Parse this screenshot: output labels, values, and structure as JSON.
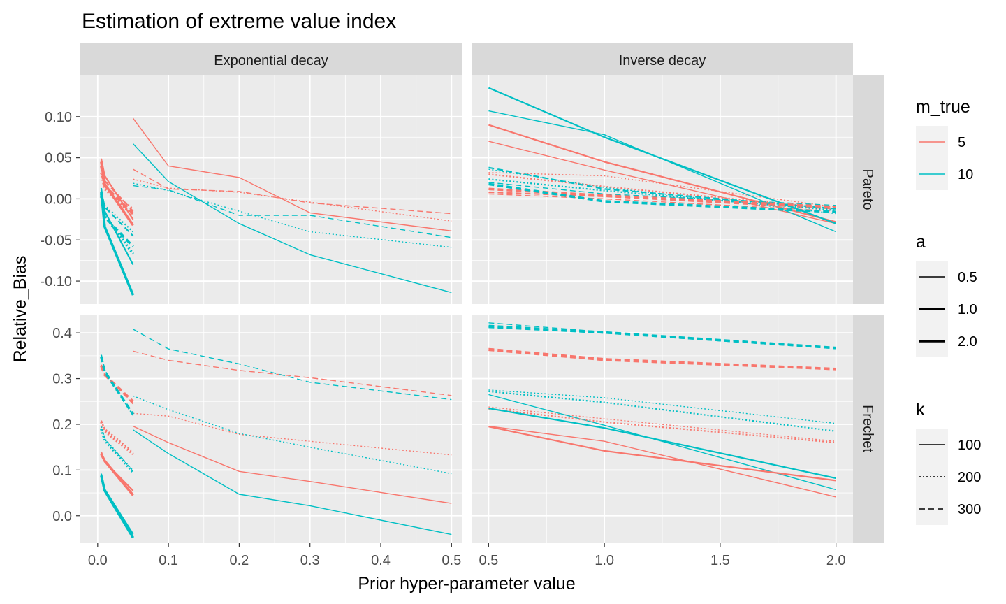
{
  "chart_data": {
    "type": "line",
    "title": "Estimation of extreme value index",
    "xlabel": "Prior hyper-parameter value",
    "ylabel": "Relative_Bias",
    "facet_cols": [
      "Exponential decay",
      "Inverse decay"
    ],
    "facet_rows": [
      "Pareto",
      "Frechet"
    ],
    "x_ticks": {
      "Exponential decay": [
        "0.0",
        "0.1",
        "0.2",
        "0.3",
        "0.4",
        "0.5"
      ],
      "Inverse decay": [
        "0.5",
        "1.0",
        "1.5",
        "2.0"
      ]
    },
    "y_ticks": {
      "Pareto": [
        "0.10",
        "0.05",
        "0.00",
        "-0.05",
        "-0.10"
      ],
      "Frechet": [
        "0.4",
        "0.3",
        "0.2",
        "0.1",
        "0.0"
      ]
    },
    "xlim": {
      "Exponential decay": [
        -0.0245,
        0.5145
      ],
      "Inverse decay": [
        0.4265,
        2.0735
      ]
    },
    "ylim": {
      "Pareto": [
        -0.128,
        0.15
      ],
      "Frechet": [
        -0.06,
        0.44
      ]
    },
    "grid": true,
    "legend_position": "right",
    "legend": {
      "m_true": {
        "title": "m_true",
        "entries": [
          "5",
          "10"
        ],
        "colors": [
          "#F8766D",
          "#00BFC4"
        ]
      },
      "a": {
        "title": "a",
        "entries": [
          "0.5",
          "1.0",
          "2.0"
        ]
      },
      "k": {
        "title": "k",
        "entries": [
          "100",
          "200",
          "300"
        ]
      }
    },
    "line_styles": {
      "100": "solid",
      "200": "dotted",
      "300": "dashed"
    },
    "series": [
      {
        "panel": "Exponential decay|Pareto",
        "m_true": "5",
        "a": "0.5",
        "k": "100",
        "x": [
          0.05,
          0.1,
          0.2,
          0.3,
          0.5
        ],
        "y": [
          0.098,
          0.04,
          0.026,
          -0.017,
          -0.039
        ]
      },
      {
        "panel": "Exponential decay|Pareto",
        "m_true": "5",
        "a": "0.5",
        "k": "200",
        "x": [
          0.05,
          0.1,
          0.2,
          0.3,
          0.5
        ],
        "y": [
          0.024,
          0.013,
          0.008,
          -0.004,
          -0.027
        ]
      },
      {
        "panel": "Exponential decay|Pareto",
        "m_true": "5",
        "a": "0.5",
        "k": "300",
        "x": [
          0.05,
          0.1,
          0.2,
          0.3,
          0.5
        ],
        "y": [
          0.036,
          0.012,
          0.009,
          -0.005,
          -0.018
        ]
      },
      {
        "panel": "Exponential decay|Pareto",
        "m_true": "10",
        "a": "0.5",
        "k": "100",
        "x": [
          0.05,
          0.1,
          0.2,
          0.3,
          0.5
        ],
        "y": [
          0.067,
          0.021,
          -0.03,
          -0.068,
          -0.114
        ]
      },
      {
        "panel": "Exponential decay|Pareto",
        "m_true": "10",
        "a": "0.5",
        "k": "200",
        "x": [
          0.05,
          0.1,
          0.2,
          0.3,
          0.5
        ],
        "y": [
          0.019,
          0.01,
          -0.015,
          -0.04,
          -0.059
        ]
      },
      {
        "panel": "Exponential decay|Pareto",
        "m_true": "10",
        "a": "0.5",
        "k": "300",
        "x": [
          0.05,
          0.1,
          0.2,
          0.3,
          0.5
        ],
        "y": [
          0.016,
          0.011,
          -0.02,
          -0.02,
          -0.047
        ]
      },
      {
        "panel": "Exponential decay|Pareto",
        "m_true": "5",
        "a": "1.0",
        "k": "100",
        "x": [
          0.005,
          0.01,
          0.05
        ],
        "y": [
          0.049,
          0.028,
          -0.025
        ]
      },
      {
        "panel": "Exponential decay|Pareto",
        "m_true": "5",
        "a": "1.0",
        "k": "200",
        "x": [
          0.005,
          0.01,
          0.05
        ],
        "y": [
          0.03,
          0.016,
          -0.012
        ]
      },
      {
        "panel": "Exponential decay|Pareto",
        "m_true": "5",
        "a": "1.0",
        "k": "300",
        "x": [
          0.005,
          0.01,
          0.05
        ],
        "y": [
          0.043,
          0.022,
          -0.015
        ]
      },
      {
        "panel": "Exponential decay|Pareto",
        "m_true": "10",
        "a": "1.0",
        "k": "100",
        "x": [
          0.005,
          0.01,
          0.05
        ],
        "y": [
          0.013,
          -0.015,
          -0.08
        ]
      },
      {
        "panel": "Exponential decay|Pareto",
        "m_true": "10",
        "a": "1.0",
        "k": "200",
        "x": [
          0.005,
          0.01,
          0.05
        ],
        "y": [
          0.005,
          -0.008,
          -0.04
        ]
      },
      {
        "panel": "Exponential decay|Pareto",
        "m_true": "10",
        "a": "1.0",
        "k": "300",
        "x": [
          0.005,
          0.01,
          0.05
        ],
        "y": [
          0.01,
          -0.01,
          -0.045
        ]
      },
      {
        "panel": "Exponential decay|Pareto",
        "m_true": "5",
        "a": "2.0",
        "k": "100",
        "x": [
          0.005,
          0.01,
          0.05
        ],
        "y": [
          0.045,
          0.018,
          -0.032
        ]
      },
      {
        "panel": "Exponential decay|Pareto",
        "m_true": "5",
        "a": "2.0",
        "k": "200",
        "x": [
          0.005,
          0.01,
          0.05
        ],
        "y": [
          0.032,
          0.012,
          -0.02
        ]
      },
      {
        "panel": "Exponential decay|Pareto",
        "m_true": "5",
        "a": "2.0",
        "k": "300",
        "x": [
          0.005,
          0.01,
          0.05
        ],
        "y": [
          0.04,
          0.016,
          -0.018
        ]
      },
      {
        "panel": "Exponential decay|Pareto",
        "m_true": "10",
        "a": "2.0",
        "k": "100",
        "x": [
          0.005,
          0.01,
          0.05
        ],
        "y": [
          0.008,
          -0.034,
          -0.117
        ]
      },
      {
        "panel": "Exponential decay|Pareto",
        "m_true": "10",
        "a": "2.0",
        "k": "200",
        "x": [
          0.005,
          0.01,
          0.05
        ],
        "y": [
          0.003,
          -0.02,
          -0.067
        ]
      },
      {
        "panel": "Exponential decay|Pareto",
        "m_true": "10",
        "a": "2.0",
        "k": "300",
        "x": [
          0.005,
          0.01,
          0.05
        ],
        "y": [
          0.006,
          -0.022,
          -0.058
        ]
      },
      {
        "panel": "Inverse decay|Pareto",
        "m_true": "5",
        "a": "0.5",
        "k": "100",
        "x": [
          0.5,
          1.0,
          2.0
        ],
        "y": [
          0.07,
          0.035,
          -0.03
        ]
      },
      {
        "panel": "Inverse decay|Pareto",
        "m_true": "5",
        "a": "0.5",
        "k": "200",
        "x": [
          0.5,
          1.0,
          2.0
        ],
        "y": [
          0.032,
          0.028,
          -0.01
        ]
      },
      {
        "panel": "Inverse decay|Pareto",
        "m_true": "5",
        "a": "0.5",
        "k": "300",
        "x": [
          0.5,
          1.0,
          2.0
        ],
        "y": [
          0.006,
          0.0,
          -0.015
        ]
      },
      {
        "panel": "Inverse decay|Pareto",
        "m_true": "10",
        "a": "0.5",
        "k": "100",
        "x": [
          0.5,
          1.0,
          2.0
        ],
        "y": [
          0.107,
          0.078,
          -0.04
        ]
      },
      {
        "panel": "Inverse decay|Pareto",
        "m_true": "10",
        "a": "0.5",
        "k": "200",
        "x": [
          0.5,
          1.0,
          2.0
        ],
        "y": [
          0.036,
          0.014,
          -0.018
        ]
      },
      {
        "panel": "Inverse decay|Pareto",
        "m_true": "10",
        "a": "0.5",
        "k": "300",
        "x": [
          0.5,
          1.0,
          2.0
        ],
        "y": [
          0.02,
          0.006,
          -0.008
        ]
      },
      {
        "panel": "Inverse decay|Pareto",
        "m_true": "5",
        "a": "1.0",
        "k": "100",
        "x": [
          0.5,
          1.0,
          2.0
        ],
        "y": [
          0.09,
          0.045,
          -0.028
        ]
      },
      {
        "panel": "Inverse decay|Pareto",
        "m_true": "5",
        "a": "1.0",
        "k": "200",
        "x": [
          0.5,
          1.0,
          2.0
        ],
        "y": [
          0.03,
          0.015,
          -0.012
        ]
      },
      {
        "panel": "Inverse decay|Pareto",
        "m_true": "5",
        "a": "1.0",
        "k": "300",
        "x": [
          0.5,
          1.0,
          2.0
        ],
        "y": [
          0.008,
          0.003,
          -0.012
        ]
      },
      {
        "panel": "Inverse decay|Pareto",
        "m_true": "10",
        "a": "1.0",
        "k": "100",
        "x": [
          0.5,
          1.0,
          2.0
        ],
        "y": [
          0.135,
          0.075,
          -0.03
        ]
      },
      {
        "panel": "Inverse decay|Pareto",
        "m_true": "10",
        "a": "1.0",
        "k": "200",
        "x": [
          0.5,
          1.0,
          2.0
        ],
        "y": [
          0.024,
          0.01,
          -0.014
        ]
      },
      {
        "panel": "Inverse decay|Pareto",
        "m_true": "10",
        "a": "1.0",
        "k": "300",
        "x": [
          0.5,
          1.0,
          2.0
        ],
        "y": [
          0.038,
          0.012,
          -0.012
        ]
      },
      {
        "panel": "Inverse decay|Pareto",
        "m_true": "5",
        "a": "2.0",
        "k": "300",
        "x": [
          0.5,
          1.0,
          2.0
        ],
        "y": [
          0.012,
          0.004,
          -0.01
        ]
      },
      {
        "panel": "Inverse decay|Pareto",
        "m_true": "10",
        "a": "2.0",
        "k": "300",
        "x": [
          0.5,
          1.0,
          2.0
        ],
        "y": [
          0.018,
          -0.003,
          -0.016
        ]
      },
      {
        "panel": "Exponential decay|Frechet",
        "m_true": "5",
        "a": "0.5",
        "k": "100",
        "x": [
          0.05,
          0.1,
          0.2,
          0.3,
          0.5
        ],
        "y": [
          0.196,
          0.16,
          0.097,
          0.075,
          0.027
        ]
      },
      {
        "panel": "Exponential decay|Frechet",
        "m_true": "5",
        "a": "0.5",
        "k": "200",
        "x": [
          0.05,
          0.1,
          0.2,
          0.3,
          0.5
        ],
        "y": [
          0.224,
          0.218,
          0.178,
          0.163,
          0.133
        ]
      },
      {
        "panel": "Exponential decay|Frechet",
        "m_true": "5",
        "a": "0.5",
        "k": "300",
        "x": [
          0.05,
          0.1,
          0.2,
          0.3,
          0.5
        ],
        "y": [
          0.36,
          0.34,
          0.318,
          0.302,
          0.263
        ]
      },
      {
        "panel": "Exponential decay|Frechet",
        "m_true": "10",
        "a": "0.5",
        "k": "100",
        "x": [
          0.05,
          0.1,
          0.2,
          0.3,
          0.5
        ],
        "y": [
          0.188,
          0.136,
          0.047,
          0.022,
          -0.041
        ]
      },
      {
        "panel": "Exponential decay|Frechet",
        "m_true": "10",
        "a": "0.5",
        "k": "200",
        "x": [
          0.05,
          0.1,
          0.2,
          0.3,
          0.5
        ],
        "y": [
          0.262,
          0.232,
          0.18,
          0.15,
          0.092
        ]
      },
      {
        "panel": "Exponential decay|Frechet",
        "m_true": "10",
        "a": "0.5",
        "k": "300",
        "x": [
          0.05,
          0.1,
          0.2,
          0.3,
          0.5
        ],
        "y": [
          0.408,
          0.365,
          0.332,
          0.292,
          0.254
        ]
      },
      {
        "panel": "Exponential decay|Frechet",
        "m_true": "5",
        "a": "1.0",
        "k": "100",
        "x": [
          0.005,
          0.01,
          0.05
        ],
        "y": [
          0.14,
          0.118,
          0.055
        ]
      },
      {
        "panel": "Exponential decay|Frechet",
        "m_true": "5",
        "a": "1.0",
        "k": "200",
        "x": [
          0.005,
          0.01,
          0.05
        ],
        "y": [
          0.208,
          0.19,
          0.14
        ]
      },
      {
        "panel": "Exponential decay|Frechet",
        "m_true": "5",
        "a": "1.0",
        "k": "300",
        "x": [
          0.005,
          0.01,
          0.05
        ],
        "y": [
          0.33,
          0.31,
          0.245
        ]
      },
      {
        "panel": "Exponential decay|Frechet",
        "m_true": "10",
        "a": "1.0",
        "k": "100",
        "x": [
          0.005,
          0.01,
          0.05
        ],
        "y": [
          0.092,
          0.058,
          -0.04
        ]
      },
      {
        "panel": "Exponential decay|Frechet",
        "m_true": "10",
        "a": "1.0",
        "k": "200",
        "x": [
          0.005,
          0.01,
          0.05
        ],
        "y": [
          0.195,
          0.168,
          0.098
        ]
      },
      {
        "panel": "Exponential decay|Frechet",
        "m_true": "10",
        "a": "1.0",
        "k": "300",
        "x": [
          0.005,
          0.01,
          0.05
        ],
        "y": [
          0.352,
          0.318,
          0.22
        ]
      },
      {
        "panel": "Exponential decay|Frechet",
        "m_true": "5",
        "a": "2.0",
        "k": "100",
        "x": [
          0.005,
          0.01,
          0.05
        ],
        "y": [
          0.135,
          0.12,
          0.045
        ]
      },
      {
        "panel": "Exponential decay|Frechet",
        "m_true": "5",
        "a": "2.0",
        "k": "200",
        "x": [
          0.005,
          0.01,
          0.05
        ],
        "y": [
          0.205,
          0.185,
          0.135
        ]
      },
      {
        "panel": "Exponential decay|Frechet",
        "m_true": "5",
        "a": "2.0",
        "k": "300",
        "x": [
          0.005,
          0.01,
          0.05
        ],
        "y": [
          0.328,
          0.308,
          0.25
        ]
      },
      {
        "panel": "Exponential decay|Frechet",
        "m_true": "10",
        "a": "2.0",
        "k": "100",
        "x": [
          0.005,
          0.01,
          0.05
        ],
        "y": [
          0.088,
          0.055,
          -0.048
        ]
      },
      {
        "panel": "Exponential decay|Frechet",
        "m_true": "10",
        "a": "2.0",
        "k": "200",
        "x": [
          0.005,
          0.01,
          0.05
        ],
        "y": [
          0.19,
          0.165,
          0.095
        ]
      },
      {
        "panel": "Exponential decay|Frechet",
        "m_true": "10",
        "a": "2.0",
        "k": "300",
        "x": [
          0.005,
          0.01,
          0.05
        ],
        "y": [
          0.348,
          0.315,
          0.222
        ]
      },
      {
        "panel": "Inverse decay|Frechet",
        "m_true": "5",
        "a": "0.5",
        "k": "100",
        "x": [
          0.5,
          1.0,
          2.0
        ],
        "y": [
          0.196,
          0.163,
          0.041
        ]
      },
      {
        "panel": "Inverse decay|Frechet",
        "m_true": "5",
        "a": "0.5",
        "k": "200",
        "x": [
          0.5,
          1.0,
          2.0
        ],
        "y": [
          0.238,
          0.212,
          0.163
        ]
      },
      {
        "panel": "Inverse decay|Frechet",
        "m_true": "5",
        "a": "0.5",
        "k": "300",
        "x": [
          0.5,
          1.0,
          2.0
        ],
        "y": [
          0.366,
          0.344,
          0.322
        ]
      },
      {
        "panel": "Inverse decay|Frechet",
        "m_true": "10",
        "a": "0.5",
        "k": "100",
        "x": [
          0.5,
          1.0,
          2.0
        ],
        "y": [
          0.265,
          0.198,
          0.057
        ]
      },
      {
        "panel": "Inverse decay|Frechet",
        "m_true": "10",
        "a": "0.5",
        "k": "200",
        "x": [
          0.5,
          1.0,
          2.0
        ],
        "y": [
          0.275,
          0.258,
          0.202
        ]
      },
      {
        "panel": "Inverse decay|Frechet",
        "m_true": "10",
        "a": "0.5",
        "k": "300",
        "x": [
          0.5,
          1.0,
          2.0
        ],
        "y": [
          0.422,
          0.402,
          0.368
        ]
      },
      {
        "panel": "Inverse decay|Frechet",
        "m_true": "5",
        "a": "1.0",
        "k": "100",
        "x": [
          0.5,
          1.0,
          2.0
        ],
        "y": [
          0.195,
          0.142,
          0.077
        ]
      },
      {
        "panel": "Inverse decay|Frechet",
        "m_true": "5",
        "a": "1.0",
        "k": "200",
        "x": [
          0.5,
          1.0,
          2.0
        ],
        "y": [
          0.234,
          0.205,
          0.16
        ]
      },
      {
        "panel": "Inverse decay|Frechet",
        "m_true": "5",
        "a": "1.0",
        "k": "300",
        "x": [
          0.5,
          1.0,
          2.0
        ],
        "y": [
          0.362,
          0.34,
          0.32
        ]
      },
      {
        "panel": "Inverse decay|Frechet",
        "m_true": "10",
        "a": "1.0",
        "k": "100",
        "x": [
          0.5,
          1.0,
          2.0
        ],
        "y": [
          0.235,
          0.192,
          0.082
        ]
      },
      {
        "panel": "Inverse decay|Frechet",
        "m_true": "10",
        "a": "1.0",
        "k": "200",
        "x": [
          0.5,
          1.0,
          2.0
        ],
        "y": [
          0.272,
          0.248,
          0.185
        ]
      },
      {
        "panel": "Inverse decay|Frechet",
        "m_true": "10",
        "a": "1.0",
        "k": "300",
        "x": [
          0.5,
          1.0,
          2.0
        ],
        "y": [
          0.412,
          0.4,
          0.366
        ]
      },
      {
        "panel": "Inverse decay|Frechet",
        "m_true": "5",
        "a": "2.0",
        "k": "300",
        "x": [
          0.5,
          1.0,
          2.0
        ],
        "y": [
          0.364,
          0.342,
          0.321
        ]
      },
      {
        "panel": "Inverse decay|Frechet",
        "m_true": "10",
        "a": "2.0",
        "k": "300",
        "x": [
          0.5,
          1.0,
          2.0
        ],
        "y": [
          0.415,
          0.401,
          0.367
        ]
      }
    ]
  }
}
